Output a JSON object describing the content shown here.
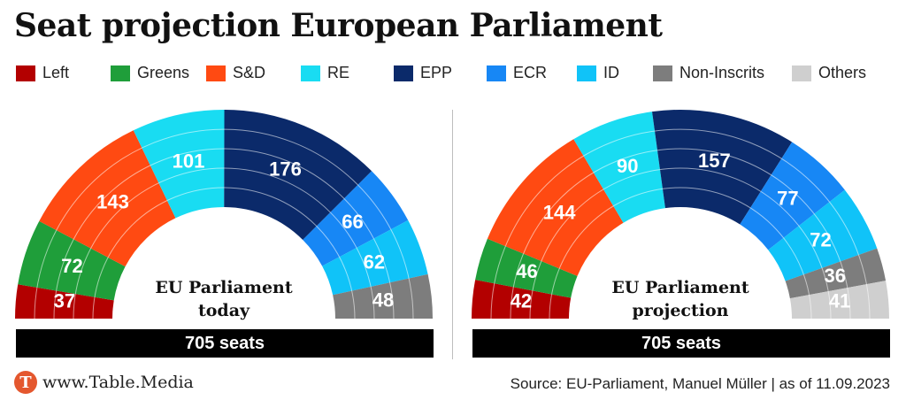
{
  "title": "Seat projection European Parliament",
  "legend": [
    {
      "label": "Left",
      "color": "#b30000"
    },
    {
      "label": "Greens",
      "color": "#1f9e3a"
    },
    {
      "label": "S&D",
      "color": "#ff4a12"
    },
    {
      "label": "RE",
      "color": "#19dcf2"
    },
    {
      "label": "EPP",
      "color": "#0b2a6a"
    },
    {
      "label": "ECR",
      "color": "#1787f5"
    },
    {
      "label": "ID",
      "color": "#10c3f8"
    },
    {
      "label": "Non-Inscrits",
      "color": "#7d7d7d"
    },
    {
      "label": "Others",
      "color": "#cfcfcf"
    }
  ],
  "chart_data": [
    {
      "type": "pie",
      "subtype": "semicircle-parliament",
      "center_label": [
        "EU Parliament",
        "today"
      ],
      "total_label": "705 seats",
      "total": 705,
      "slices": [
        {
          "party": "Left",
          "value": 37,
          "color": "#b30000"
        },
        {
          "party": "Greens",
          "value": 72,
          "color": "#1f9e3a"
        },
        {
          "party": "S&D",
          "value": 143,
          "color": "#ff4a12"
        },
        {
          "party": "RE",
          "value": 101,
          "color": "#19dcf2"
        },
        {
          "party": "EPP",
          "value": 176,
          "color": "#0b2a6a"
        },
        {
          "party": "ECR",
          "value": 66,
          "color": "#1787f5"
        },
        {
          "party": "ID",
          "value": 62,
          "color": "#10c3f8"
        },
        {
          "party": "Non-Inscrits",
          "value": 48,
          "color": "#7d7d7d"
        }
      ]
    },
    {
      "type": "pie",
      "subtype": "semicircle-parliament",
      "center_label": [
        "EU Parliament",
        "projection"
      ],
      "total_label": "705 seats",
      "total": 705,
      "slices": [
        {
          "party": "Left",
          "value": 42,
          "color": "#b30000"
        },
        {
          "party": "Greens",
          "value": 46,
          "color": "#1f9e3a"
        },
        {
          "party": "S&D",
          "value": 144,
          "color": "#ff4a12"
        },
        {
          "party": "RE",
          "value": 90,
          "color": "#19dcf2"
        },
        {
          "party": "EPP",
          "value": 157,
          "color": "#0b2a6a"
        },
        {
          "party": "ECR",
          "value": 77,
          "color": "#1787f5"
        },
        {
          "party": "ID",
          "value": 72,
          "color": "#10c3f8"
        },
        {
          "party": "Non-Inscrits",
          "value": 36,
          "color": "#7d7d7d"
        },
        {
          "party": "Others",
          "value": 41,
          "color": "#cfcfcf"
        }
      ]
    }
  ],
  "footer": {
    "logo_letter": "T",
    "logo_text": "www.Table.Media",
    "source": "Source: EU-Parliament, Manuel Müller | as of 11.09.2023"
  }
}
